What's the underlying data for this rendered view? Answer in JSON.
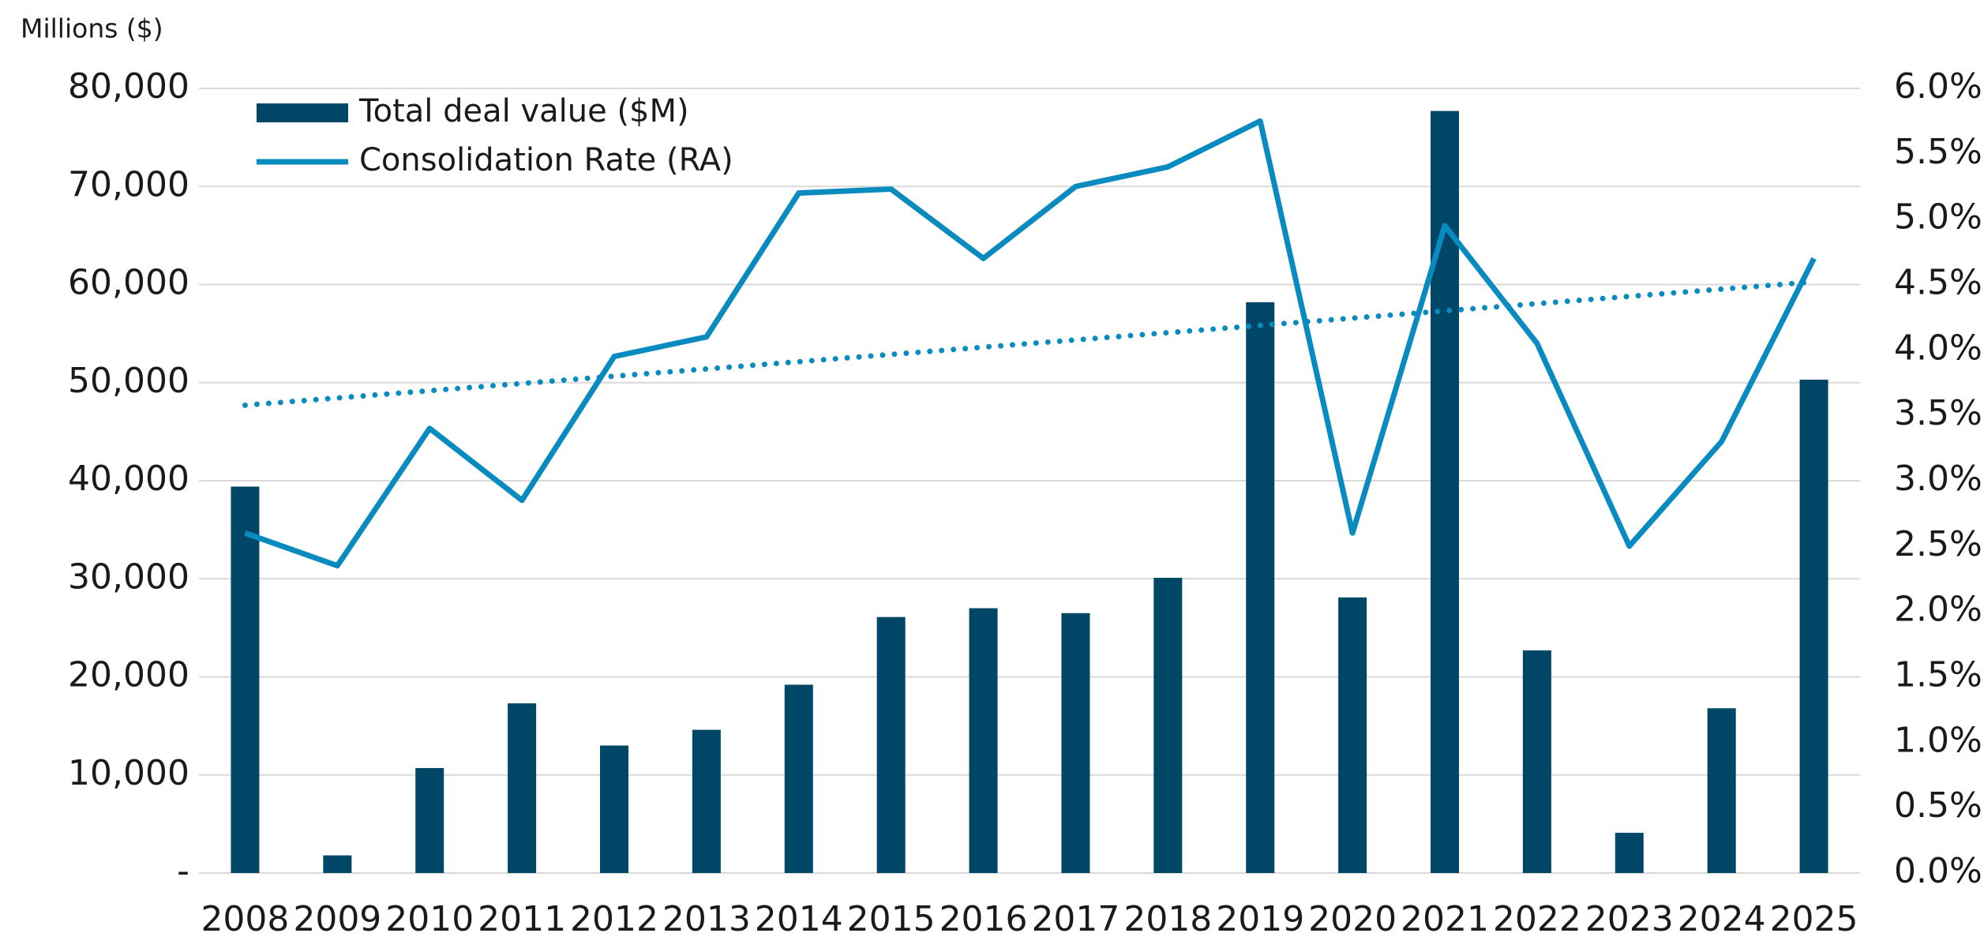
{
  "chart_data": {
    "type": "bar-line",
    "y_axis_label": "Millions ($)",
    "categories": [
      "2008",
      "2009",
      "2010",
      "2011",
      "2012",
      "2013",
      "2014",
      "2015",
      "2016",
      "2017",
      "2018",
      "2019",
      "2020",
      "2021",
      "2022",
      "2023",
      "2024",
      "2025"
    ],
    "series": [
      {
        "name": "Total deal value ($M)",
        "type": "bar",
        "color": "#004666",
        "values": [
          39400,
          1800,
          10700,
          17300,
          13000,
          14600,
          19200,
          26100,
          27000,
          26500,
          30100,
          58200,
          28100,
          77700,
          22700,
          4100,
          16800,
          50300
        ]
      },
      {
        "name": "Consolidation Rate (RA)",
        "type": "line",
        "axis": "y2",
        "color": "#0a8bbf",
        "trendline": true,
        "values": [
          2.6,
          2.35,
          3.4,
          2.85,
          3.95,
          4.1,
          5.2,
          5.23,
          4.7,
          5.25,
          5.4,
          5.75,
          2.6,
          4.95,
          4.05,
          2.5,
          3.3,
          4.7
        ]
      }
    ],
    "ylim": [
      0,
      80000
    ],
    "yticks": [
      {
        "value": 0,
        "label": "-"
      },
      {
        "value": 10000,
        "label": "10,000"
      },
      {
        "value": 20000,
        "label": "20,000"
      },
      {
        "value": 30000,
        "label": "30,000"
      },
      {
        "value": 40000,
        "label": "40,000"
      },
      {
        "value": 50000,
        "label": "50,000"
      },
      {
        "value": 60000,
        "label": "60,000"
      },
      {
        "value": 70000,
        "label": "70,000"
      },
      {
        "value": 80000,
        "label": "80,000"
      }
    ],
    "y2lim": [
      0,
      6
    ],
    "y2ticks": [
      {
        "value": 0,
        "label": "0.0%"
      },
      {
        "value": 0.5,
        "label": "0.5%"
      },
      {
        "value": 1,
        "label": "1.0%"
      },
      {
        "value": 1.5,
        "label": "1.5%"
      },
      {
        "value": 2,
        "label": "2.0%"
      },
      {
        "value": 2.5,
        "label": "2.5%"
      },
      {
        "value": 3,
        "label": "3.0%"
      },
      {
        "value": 3.5,
        "label": "3.5%"
      },
      {
        "value": 4,
        "label": "4.0%"
      },
      {
        "value": 4.5,
        "label": "4.5%"
      },
      {
        "value": 5,
        "label": "5.0%"
      },
      {
        "value": 5.5,
        "label": "5.5%"
      },
      {
        "value": 6,
        "label": "6.0%"
      }
    ],
    "grid": true,
    "legend": "upper left"
  }
}
